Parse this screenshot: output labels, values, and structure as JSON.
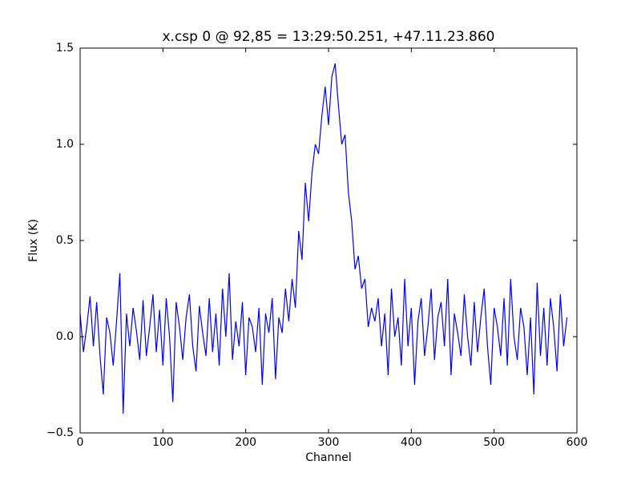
{
  "chart_data": {
    "type": "line",
    "title": "x.csp 0 @ 92,85 = 13:29:50.251, +47.11.23.860",
    "x_label": "Channel",
    "y_label": "Flux (K)",
    "x": [
      0,
      4,
      8,
      12,
      16,
      20,
      24,
      28,
      32,
      36,
      40,
      44,
      48,
      52,
      56,
      60,
      64,
      68,
      72,
      76,
      80,
      84,
      88,
      92,
      96,
      100,
      104,
      108,
      112,
      116,
      120,
      124,
      128,
      132,
      136,
      140,
      144,
      148,
      152,
      156,
      160,
      164,
      168,
      172,
      176,
      180,
      184,
      188,
      192,
      196,
      200,
      204,
      208,
      212,
      216,
      220,
      224,
      228,
      232,
      236,
      240,
      244,
      248,
      252,
      256,
      260,
      264,
      268,
      272,
      276,
      280,
      284,
      288,
      292,
      296,
      300,
      304,
      308,
      312,
      316,
      320,
      324,
      328,
      332,
      336,
      340,
      344,
      348,
      352,
      356,
      360,
      364,
      368,
      372,
      376,
      380,
      384,
      388,
      392,
      396,
      400,
      404,
      408,
      412,
      416,
      420,
      424,
      428,
      432,
      436,
      440,
      444,
      448,
      452,
      456,
      460,
      464,
      468,
      472,
      476,
      480,
      484,
      488,
      492,
      496,
      500,
      504,
      508,
      512,
      516,
      520,
      524,
      528,
      532,
      536,
      540,
      544,
      548,
      552,
      556,
      560,
      564,
      568,
      572,
      576,
      580,
      584,
      588
    ],
    "series": [
      {
        "name": "x.csp 0",
        "color": "#0000ff",
        "values": [
          0.12,
          -0.08,
          0.05,
          0.21,
          -0.05,
          0.18,
          -0.1,
          -0.3,
          0.1,
          0.02,
          -0.15,
          0.08,
          0.33,
          -0.4,
          0.12,
          -0.05,
          0.15,
          0.03,
          -0.12,
          0.19,
          -0.1,
          0.05,
          0.22,
          -0.08,
          0.14,
          -0.15,
          0.2,
          0.0,
          -0.34,
          0.18,
          0.05,
          -0.12,
          0.1,
          0.22,
          -0.05,
          -0.18,
          0.16,
          0.02,
          -0.1,
          0.2,
          -0.08,
          0.12,
          -0.15,
          0.25,
          0.0,
          0.33,
          -0.12,
          0.08,
          -0.05,
          0.18,
          -0.2,
          0.1,
          0.05,
          -0.08,
          0.15,
          -0.25,
          0.12,
          0.02,
          0.2,
          -0.22,
          0.1,
          0.02,
          0.25,
          0.08,
          0.3,
          0.15,
          0.55,
          0.4,
          0.8,
          0.6,
          0.85,
          1.0,
          0.95,
          1.15,
          1.3,
          1.1,
          1.35,
          1.42,
          1.2,
          1.0,
          1.05,
          0.75,
          0.6,
          0.35,
          0.42,
          0.25,
          0.3,
          0.05,
          0.15,
          0.08,
          0.2,
          -0.05,
          0.12,
          -0.2,
          0.25,
          0.0,
          0.1,
          -0.15,
          0.3,
          -0.05,
          0.15,
          -0.25,
          0.08,
          0.2,
          -0.1,
          0.05,
          0.25,
          -0.12,
          0.1,
          0.18,
          -0.05,
          0.3,
          -0.2,
          0.12,
          0.02,
          -0.1,
          0.22,
          0.0,
          -0.15,
          0.18,
          -0.08,
          0.1,
          0.25,
          -0.05,
          -0.25,
          0.15,
          0.05,
          -0.1,
          0.2,
          -0.15,
          0.3,
          0.0,
          -0.12,
          0.15,
          0.05,
          -0.2,
          0.1,
          -0.3,
          0.28,
          -0.1,
          0.15,
          -0.15,
          0.2,
          0.05,
          -0.18,
          0.22,
          -0.05,
          0.1
        ]
      }
    ],
    "xlim": [
      0,
      600
    ],
    "xticks": [
      0,
      100,
      200,
      300,
      400,
      500,
      600
    ],
    "ylim": [
      -0.5,
      1.5
    ],
    "yticks": [
      {
        "value": -0.5,
        "label": "−0.5"
      },
      {
        "value": 0,
        "label": "0.0"
      },
      {
        "value": 0.5,
        "label": "0.5"
      },
      {
        "value": 1,
        "label": "1.0"
      },
      {
        "value": 1.5,
        "label": "1.5"
      }
    ],
    "grid": false
  }
}
